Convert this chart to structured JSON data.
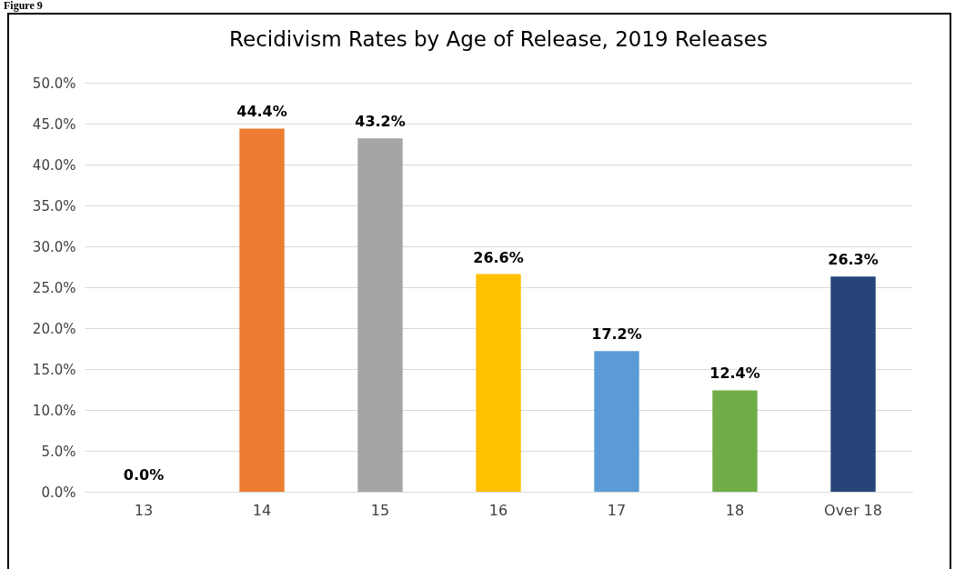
{
  "chart_data": {
    "type": "bar",
    "title": "Recidivism Rates by Age of Release, 2019 Releases",
    "annotations": [
      "Figure 9"
    ],
    "categories": [
      "13",
      "14",
      "15",
      "16",
      "17",
      "18",
      "Over 18"
    ],
    "values": [
      0,
      44.4,
      43.2,
      26.6,
      17.2,
      12.4,
      26.3
    ],
    "value_labels": [
      "0.0%",
      "44.4%",
      "43.2%",
      "26.6%",
      "17.2%",
      "12.4%",
      "26.3%"
    ],
    "colors": [
      "#4472c4",
      "#ed7d31",
      "#a5a5a5",
      "#ffc000",
      "#5b9bd5",
      "#70ad47",
      "#264478"
    ],
    "ylim": [
      0,
      50
    ],
    "yticks": [
      {
        "value": 0,
        "label": "0.0%"
      },
      {
        "value": 5,
        "label": "5.0%"
      },
      {
        "value": 10,
        "label": "10.0%"
      },
      {
        "value": 15,
        "label": "15.0%"
      },
      {
        "value": 20,
        "label": "20.0%"
      },
      {
        "value": 25,
        "label": "25.0%"
      },
      {
        "value": 30,
        "label": "30.0%"
      },
      {
        "value": 35,
        "label": "35.0%"
      },
      {
        "value": 40,
        "label": "40.0%"
      },
      {
        "value": 45,
        "label": "45.0%"
      },
      {
        "value": 50,
        "label": "50.0%"
      }
    ],
    "grid": "y"
  }
}
